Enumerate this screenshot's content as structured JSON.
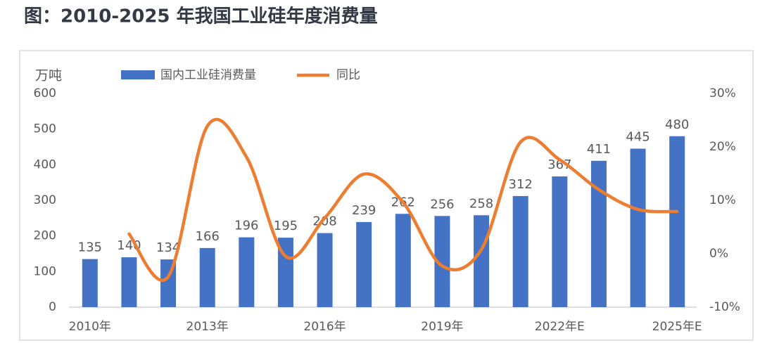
{
  "title": "图：2010-2025 年我国工业硅年度消费量",
  "chart_data": {
    "type": "bar-line",
    "y_label": "万吨",
    "categories": [
      "2010年",
      null,
      null,
      "2013年",
      null,
      null,
      "2016年",
      null,
      null,
      "2019年",
      null,
      null,
      "2022年E",
      null,
      null,
      "2025年E"
    ],
    "series": [
      {
        "name": "国内工业硅消费量",
        "type": "bar",
        "color": "#4472c4",
        "values": [
          135,
          140,
          134,
          166,
          196,
          195,
          208,
          239,
          262,
          256,
          258,
          312,
          367,
          411,
          445,
          480
        ]
      },
      {
        "name": "同比",
        "type": "line",
        "axis": "y2",
        "color": "#ed7d31",
        "values": [
          null,
          3.7,
          -4.3,
          23.9,
          18.1,
          -0.5,
          6.7,
          14.9,
          9.6,
          -2.3,
          0.8,
          20.9,
          17.6,
          12.0,
          8.3,
          7.9
        ]
      }
    ],
    "ylim": [
      0,
      600
    ],
    "yticks": [
      0,
      100,
      200,
      300,
      400,
      500,
      600
    ],
    "y2lim": [
      -10,
      30
    ],
    "y2ticks": [
      {
        "value": -10,
        "label": "-10%"
      },
      {
        "value": 0,
        "label": "0%"
      },
      {
        "value": 10,
        "label": "10%"
      },
      {
        "value": 20,
        "label": "20%"
      },
      {
        "value": 30,
        "label": "30%"
      }
    ],
    "grid": false,
    "legend": "top"
  }
}
